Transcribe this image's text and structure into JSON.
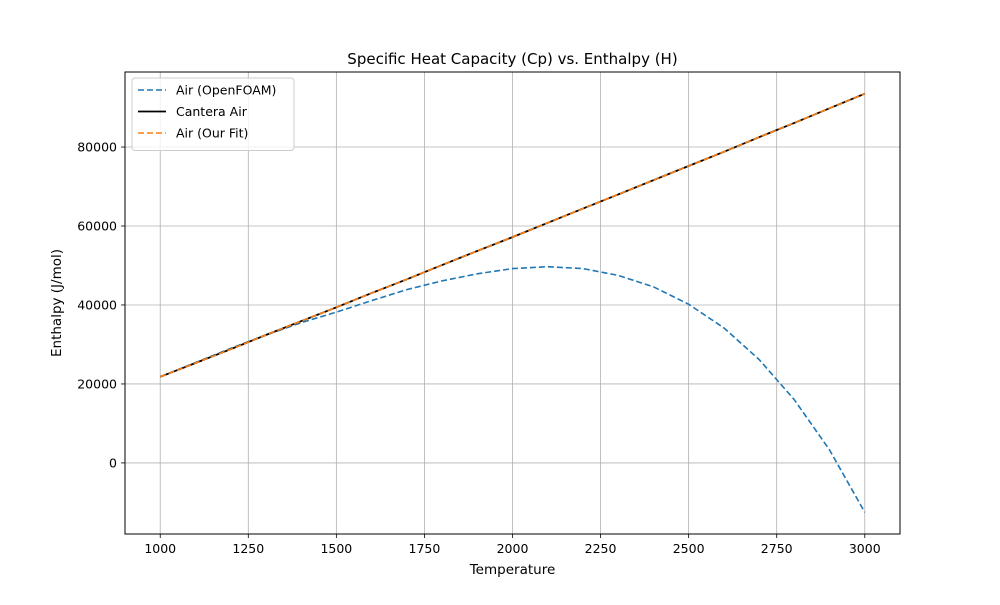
{
  "chart_data": {
    "type": "line",
    "title": "Specific Heat Capacity (Cp) vs. Enthalpy (H)",
    "xlabel": "Temperature",
    "ylabel": "Enthalpy (J/mol)",
    "xlim": [
      900,
      3100
    ],
    "ylim": [
      -18000,
      99000
    ],
    "grid": true,
    "legend_position": "top-left",
    "x_ticks": [
      1000,
      1250,
      1500,
      1750,
      2000,
      2250,
      2500,
      2750,
      3000
    ],
    "y_ticks": [
      0,
      20000,
      40000,
      60000,
      80000
    ],
    "x": [
      1000,
      1100,
      1200,
      1300,
      1400,
      1500,
      1600,
      1700,
      1800,
      1900,
      2000,
      2100,
      2200,
      2300,
      2400,
      2500,
      2600,
      2700,
      2800,
      2900,
      3000
    ],
    "series": [
      {
        "name": "Air (OpenFOAM)",
        "color": "#1f77b4",
        "style": "dashed",
        "values": [
          21800,
          25400,
          29000,
          32400,
          35500,
          38200,
          41100,
          43900,
          46100,
          47900,
          49200,
          49700,
          49200,
          47500,
          44600,
          40200,
          34200,
          26200,
          16000,
          3300,
          -12500
        ]
      },
      {
        "name": "Cantera Air",
        "color": "#000000",
        "style": "solid",
        "values": [
          21800,
          25300,
          28800,
          32400,
          35900,
          39400,
          43000,
          46500,
          50100,
          53700,
          57200,
          60800,
          64400,
          68000,
          71600,
          75200,
          78800,
          82500,
          86100,
          89800,
          93500
        ]
      },
      {
        "name": "Air (Our Fit)",
        "color": "#ff7f0e",
        "style": "dashed",
        "values": [
          21800,
          25300,
          28800,
          32400,
          35900,
          39400,
          43000,
          46500,
          50100,
          53700,
          57200,
          60800,
          64400,
          68000,
          71600,
          75200,
          78800,
          82500,
          86100,
          89800,
          93500
        ]
      }
    ]
  }
}
